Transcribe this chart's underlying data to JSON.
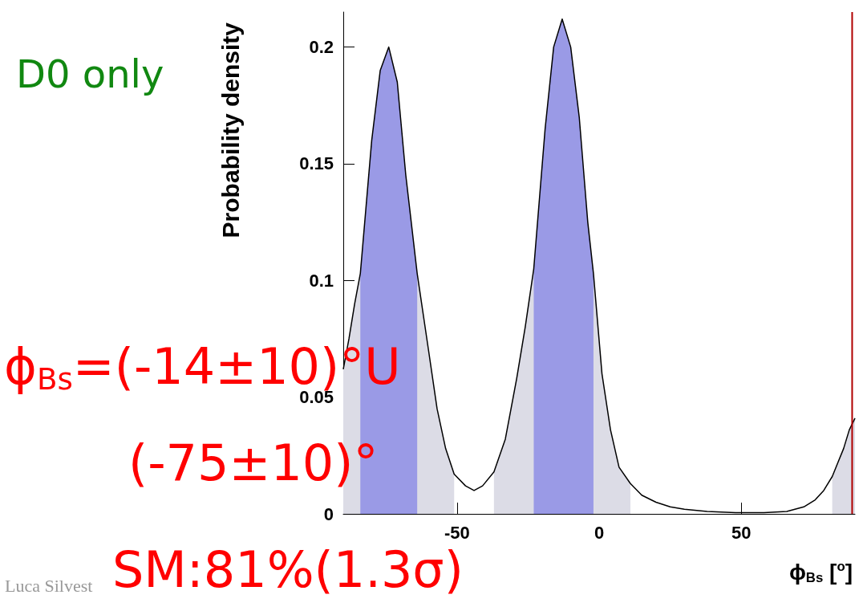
{
  "chart_data": {
    "type": "area",
    "xlabel": "ϕ$_{Bs}$ [$^{o}$]",
    "ylabel": "Probability density",
    "x": [
      -90,
      -88,
      -86,
      -84,
      -80,
      -77,
      -74,
      -71,
      -68,
      -64,
      -60,
      -57,
      -54,
      -51,
      -47,
      -44,
      -41,
      -37,
      -33,
      -29,
      -26,
      -23,
      -19,
      -16,
      -13,
      -10,
      -7,
      -4,
      -2,
      1,
      4,
      7,
      11,
      15,
      20,
      25,
      30,
      38,
      48,
      58,
      66,
      72,
      76,
      79,
      82,
      84,
      86,
      88,
      90
    ],
    "series": [
      {
        "color": "#dcdce6",
        "values": [
          0.062,
          0.075,
          0.09,
          0.103,
          0.16,
          0.19,
          0.2,
          0.185,
          0.145,
          0.103,
          0.07,
          0.045,
          0.028,
          0.017,
          null,
          null,
          null,
          0.018,
          0.032,
          0.058,
          0.08,
          0.105,
          0.165,
          0.2,
          0.212,
          0.2,
          0.17,
          0.125,
          0.103,
          0.06,
          0.036,
          0.02,
          0.013,
          null,
          null,
          null,
          null,
          null,
          null,
          null,
          null,
          null,
          null,
          null,
          0.016,
          0.022,
          0.028,
          0.036,
          0.041
        ]
      },
      {
        "color": "#9a9ae6",
        "values": [
          null,
          null,
          null,
          0.103,
          0.16,
          0.19,
          0.2,
          0.185,
          0.145,
          0.103,
          null,
          null,
          null,
          null,
          null,
          null,
          null,
          null,
          null,
          null,
          null,
          0.105,
          0.165,
          0.2,
          0.212,
          0.2,
          0.17,
          0.125,
          0.103,
          null,
          null,
          null,
          null,
          null,
          null,
          null,
          null,
          null,
          null,
          null,
          null,
          null,
          null,
          null,
          null,
          null,
          null,
          null,
          null
        ]
      },
      {
        "type": "line",
        "color": "#000000",
        "values": [
          0.062,
          0.075,
          0.09,
          0.103,
          0.16,
          0.19,
          0.2,
          0.185,
          0.145,
          0.103,
          0.07,
          0.045,
          0.028,
          0.017,
          0.012,
          0.01,
          0.012,
          0.018,
          0.032,
          0.058,
          0.08,
          0.105,
          0.165,
          0.2,
          0.212,
          0.2,
          0.17,
          0.125,
          0.103,
          0.06,
          0.036,
          0.02,
          0.013,
          0.008,
          0.005,
          0.003,
          0.002,
          0.001,
          0.0005,
          0.0005,
          0.001,
          0.003,
          0.006,
          0.01,
          0.016,
          0.022,
          0.028,
          0.036,
          0.041
        ]
      }
    ],
    "xlim": [
      -90,
      90
    ],
    "xticks": [
      -50,
      0,
      50
    ],
    "ylim": [
      0,
      0.215
    ],
    "yticks": [
      0,
      0.05,
      0.1,
      0.15,
      0.2
    ],
    "ref_lines": [
      {
        "axis": "x",
        "value": 89,
        "color": "#b00000"
      }
    ],
    "grid": false,
    "annotations": [
      "D0 only",
      "ϕ$_{Bs}$=(-14±10)°U",
      "(-75±10)°",
      "SM:81%(1.3σ)",
      "Luca Silvest"
    ]
  }
}
